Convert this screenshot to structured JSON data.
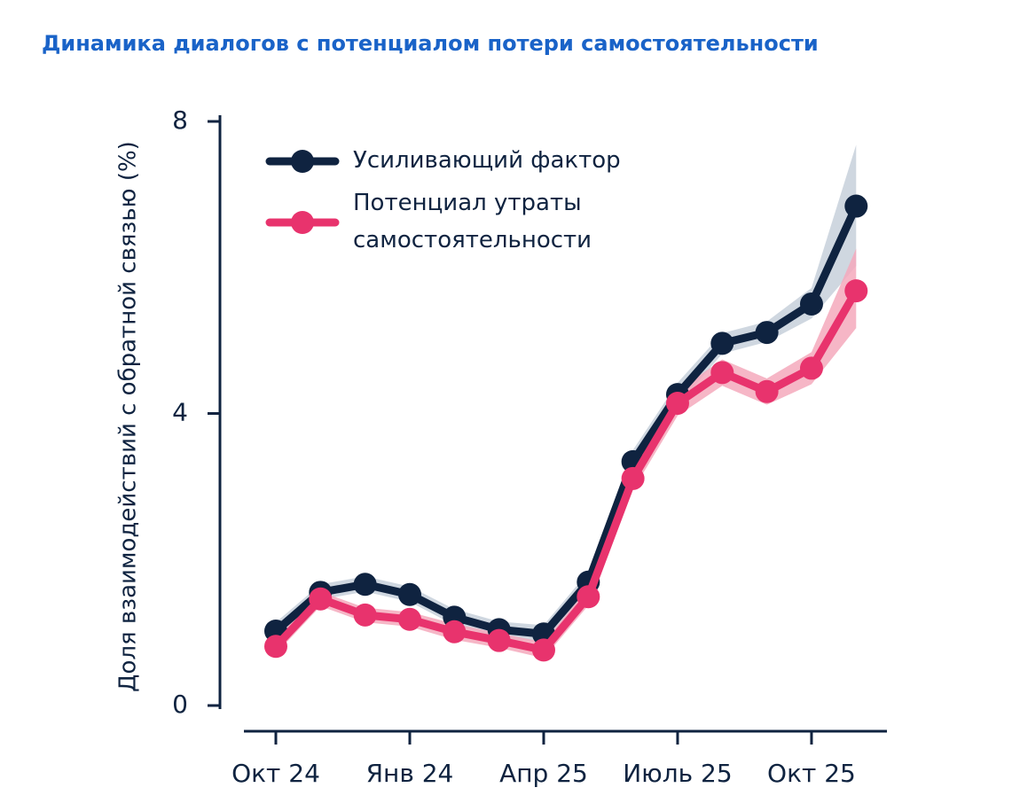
{
  "chart_data": {
    "type": "line",
    "title": "Динамика диалогов с потенциалом потери самостоятельности",
    "y_label": "Доля взаимодействий с обратной связью (%)",
    "categories": [
      "Окт 24",
      null,
      null,
      "Янв 24",
      null,
      null,
      "Апр 25",
      null,
      null,
      "Июль 25",
      null,
      null,
      "Окт 25",
      null
    ],
    "ylim": [
      0,
      8
    ],
    "yticks": [
      0,
      4,
      8
    ],
    "series": [
      {
        "name": "Усиливающий фактор",
        "color": "#0f2340",
        "band_color": "#c7d0da",
        "values": [
          1.02,
          1.55,
          1.66,
          1.52,
          1.21,
          1.04,
          0.98,
          1.69,
          3.34,
          4.26,
          4.96,
          5.11,
          5.5,
          6.84
        ],
        "ci_lower": [
          0.9,
          1.45,
          1.56,
          1.42,
          1.1,
          0.93,
          0.86,
          1.55,
          3.18,
          4.1,
          4.82,
          4.98,
          5.3,
          6.02
        ],
        "ci_upper": [
          1.14,
          1.66,
          1.77,
          1.63,
          1.32,
          1.15,
          1.1,
          1.83,
          3.5,
          4.42,
          5.1,
          5.26,
          5.72,
          7.68
        ]
      },
      {
        "name": "Потенциал утраты самостоятельности",
        "color": "#e8336d",
        "band_color": "#f5a9bc",
        "values": [
          0.81,
          1.46,
          1.24,
          1.18,
          1.01,
          0.89,
          0.76,
          1.49,
          3.11,
          4.14,
          4.56,
          4.3,
          4.62,
          5.68
        ],
        "ci_lower": [
          0.71,
          1.36,
          1.14,
          1.08,
          0.9,
          0.79,
          0.65,
          1.37,
          2.95,
          3.97,
          4.38,
          4.12,
          4.4,
          5.17
        ],
        "ci_upper": [
          0.91,
          1.56,
          1.34,
          1.28,
          1.12,
          0.99,
          0.87,
          1.61,
          3.27,
          4.31,
          4.74,
          4.48,
          4.84,
          6.26
        ]
      }
    ]
  }
}
